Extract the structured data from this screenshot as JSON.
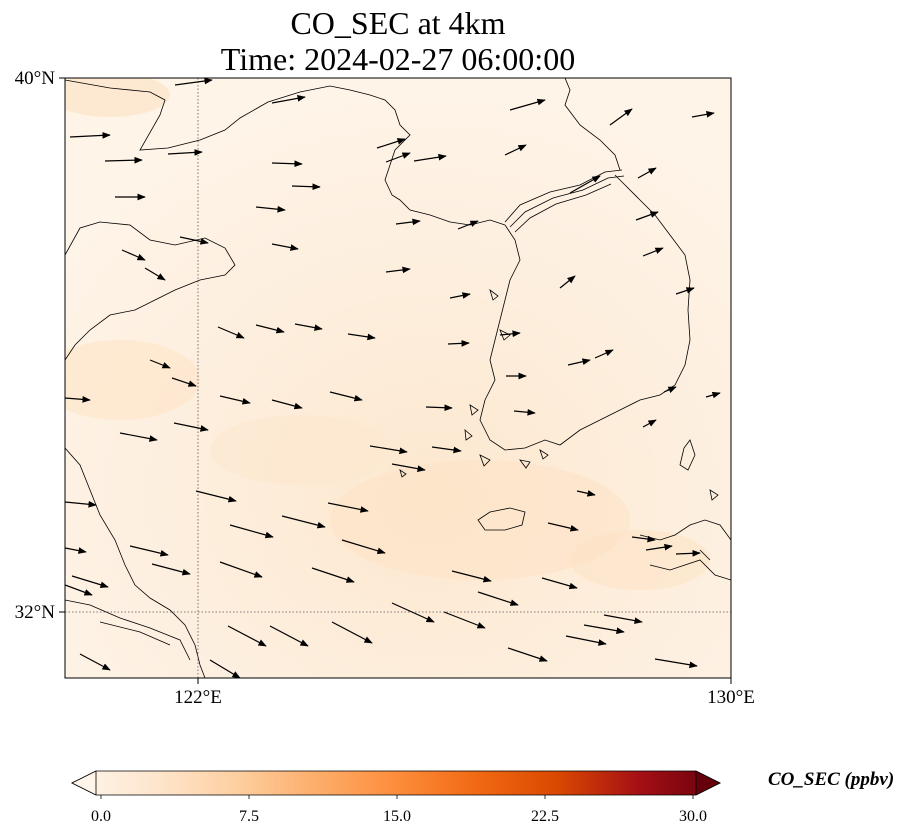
{
  "title": {
    "line1": "CO_SEC at 4km",
    "line2": "Time: 2024-02-27 06:00:00"
  },
  "map": {
    "extent": {
      "lon": [
        119.6,
        130.0
      ],
      "lat": [
        30.8,
        40.0
      ]
    },
    "lat_ticks": [
      {
        "value": 40,
        "label": "40°N"
      },
      {
        "value": 32,
        "label": "32°N"
      }
    ],
    "lon_ticks": [
      {
        "value": 122,
        "label": "122°E"
      },
      {
        "value": 130,
        "label": "130°E"
      }
    ],
    "gridlines": {
      "lon": [
        122
      ],
      "lat": [
        32
      ],
      "style": "dotted"
    },
    "coastline_color": "#000000",
    "vector_color": "#000000"
  },
  "colorbar": {
    "label": "CO_SEC (ppbv)",
    "min": 0.0,
    "max": 30.0,
    "ticks": [
      "0.0",
      "7.5",
      "15.0",
      "22.5",
      "30.0"
    ],
    "colormap": [
      "#fff5eb",
      "#fee6ce",
      "#fdd0a2",
      "#fdae6b",
      "#fd8d3c",
      "#f16913",
      "#d94801",
      "#a50f15",
      "#67000d"
    ],
    "extend": "both"
  },
  "field_range_ppbv": [
    0.3,
    2.5
  ]
}
